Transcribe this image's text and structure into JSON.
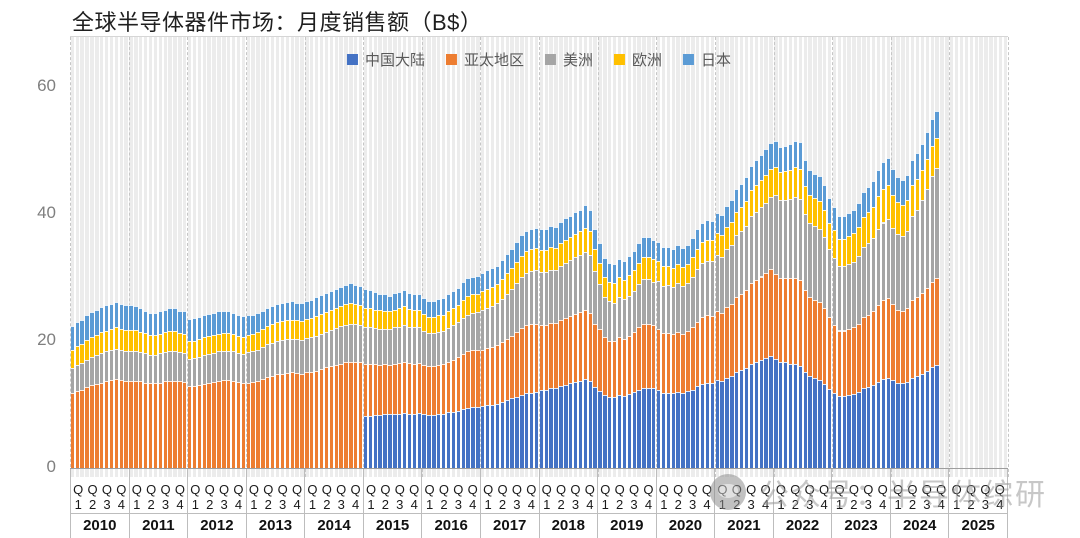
{
  "title": "全球半导体器件市场：月度销售额（B$）",
  "watermark": {
    "icon": "wechat-account-logo",
    "text": "公众号：半导体综研"
  },
  "chart_data": {
    "type": "bar",
    "stacked": true,
    "title": "全球半导体器件市场：月度销售额（B$）",
    "unit": "B$",
    "x_granularity": "monthly",
    "x_start": "2010-01",
    "x_end": "2024-10",
    "years": [
      2010,
      2011,
      2012,
      2013,
      2014,
      2015,
      2016,
      2017,
      2018,
      2019,
      2020,
      2021,
      2022,
      2023,
      2024,
      2025
    ],
    "quarter_labels": [
      "Q1",
      "Q2",
      "Q3",
      "Q4"
    ],
    "y_ticks": [
      0,
      20,
      40,
      60
    ],
    "ylim": [
      0,
      68
    ],
    "grid": "vertical-dashed-by-year",
    "legend_position": "top-center",
    "series": [
      {
        "name": "中国大陆",
        "color": "#4472C4",
        "values": [
          0,
          0,
          0,
          0,
          0,
          0,
          0,
          0,
          0,
          0,
          0,
          0,
          0,
          0,
          0,
          0,
          0,
          0,
          0,
          0,
          0,
          0,
          0,
          0,
          0,
          0,
          0,
          0,
          0,
          0,
          0,
          0,
          0,
          0,
          0,
          0,
          0,
          0,
          0,
          0,
          0,
          0,
          0,
          0,
          0,
          0,
          0,
          0,
          0,
          0,
          0,
          0,
          0,
          0,
          0,
          0,
          0,
          0,
          0,
          0,
          8.3,
          8.4,
          8.5,
          8.5,
          8.6,
          8.6,
          8.7,
          8.7,
          8.8,
          8.7,
          8.7,
          8.8,
          8.6,
          8.5,
          8.5,
          8.6,
          8.7,
          8.9,
          9.0,
          9.2,
          9.4,
          9.6,
          9.7,
          9.8,
          9.9,
          10.0,
          10.1,
          10.3,
          10.5,
          10.8,
          11.1,
          11.4,
          11.7,
          11.9,
          12.0,
          12.1,
          12.4,
          12.5,
          12.7,
          12.8,
          13.0,
          13.3,
          13.5,
          13.7,
          13.9,
          14.1,
          13.9,
          12.9,
          12.3,
          11.6,
          11.3,
          11.3,
          11.6,
          11.5,
          11.8,
          12.1,
          12.5,
          12.8,
          12.8,
          12.7,
          12.4,
          12.0,
          12.0,
          11.9,
          12.1,
          12.0,
          12.2,
          12.5,
          13.0,
          13.4,
          13.6,
          13.5,
          14.0,
          13.9,
          14.4,
          14.7,
          15.3,
          15.6,
          15.9,
          16.5,
          16.8,
          17.1,
          17.4,
          17.8,
          17.3,
          16.9,
          16.8,
          16.6,
          16.5,
          16.2,
          15.2,
          14.6,
          14.3,
          14.0,
          13.4,
          12.6,
          12.0,
          11.5,
          11.5,
          11.6,
          11.8,
          12.1,
          12.7,
          12.9,
          13.2,
          13.7,
          14.1,
          14.3,
          14.0,
          13.6,
          13.5,
          13.7,
          14.4,
          14.7,
          15.0,
          15.4,
          16.0,
          16.3
        ]
      },
      {
        "name": "亚太地区",
        "color": "#ED7D31",
        "values": [
          11.9,
          12.2,
          12.5,
          12.9,
          13.2,
          13.4,
          13.6,
          13.8,
          14.0,
          14.1,
          14.0,
          13.9,
          13.9,
          13.9,
          13.8,
          13.6,
          13.5,
          13.5,
          13.6,
          13.8,
          13.9,
          13.9,
          13.8,
          13.7,
          13.0,
          13.1,
          13.2,
          13.4,
          13.6,
          13.7,
          13.9,
          14.0,
          14.0,
          13.9,
          13.7,
          13.6,
          13.6,
          13.7,
          13.9,
          14.2,
          14.5,
          14.7,
          14.9,
          15.0,
          15.1,
          15.2,
          15.1,
          15.0,
          15.2,
          15.3,
          15.5,
          15.7,
          16.0,
          16.2,
          16.4,
          16.6,
          16.8,
          16.9,
          16.9,
          16.8,
          8.2,
          8.1,
          8.0,
          7.9,
          7.9,
          7.8,
          7.9,
          8.0,
          8.1,
          8.0,
          7.9,
          7.9,
          7.8,
          7.7,
          7.7,
          7.8,
          7.8,
          8.0,
          8.2,
          8.4,
          8.7,
          8.9,
          9.0,
          9.0,
          8.9,
          9.0,
          9.1,
          9.2,
          9.5,
          9.7,
          9.9,
          10.2,
          10.5,
          10.7,
          10.8,
          10.8,
          10.3,
          10.2,
          10.3,
          10.2,
          10.4,
          10.5,
          10.6,
          10.7,
          10.8,
          10.9,
          10.7,
          9.9,
          9.8,
          9.1,
          8.9,
          8.8,
          9.1,
          9.0,
          9.2,
          9.4,
          9.8,
          10.1,
          10.1,
          9.9,
          9.6,
          9.4,
          9.4,
          9.3,
          9.5,
          9.3,
          9.5,
          9.8,
          10.2,
          10.5,
          10.6,
          10.6,
          10.8,
          10.7,
          11.1,
          11.3,
          11.8,
          12.0,
          12.3,
          12.8,
          13.0,
          13.2,
          13.4,
          13.7,
          13.4,
          13.2,
          13.3,
          13.4,
          13.6,
          13.6,
          12.9,
          12.4,
          12.3,
          12.3,
          11.9,
          11.3,
          10.7,
          10.3,
          10.3,
          10.4,
          10.5,
          10.8,
          11.2,
          11.4,
          11.7,
          12.1,
          12.5,
          12.6,
          11.9,
          11.5,
          11.4,
          11.6,
          12.2,
          12.4,
          12.7,
          13.1,
          13.5,
          13.8
        ]
      },
      {
        "name": "美洲",
        "color": "#A5A5A5",
        "values": [
          4.0,
          4.1,
          4.2,
          4.3,
          4.4,
          4.5,
          4.6,
          4.7,
          4.7,
          4.8,
          4.7,
          4.7,
          4.7,
          4.7,
          4.6,
          4.6,
          4.5,
          4.5,
          4.6,
          4.6,
          4.7,
          4.7,
          4.6,
          4.6,
          4.3,
          4.3,
          4.4,
          4.5,
          4.5,
          4.6,
          4.6,
          4.6,
          4.6,
          4.6,
          4.5,
          4.5,
          4.8,
          4.8,
          4.9,
          5.0,
          5.1,
          5.2,
          5.2,
          5.3,
          5.3,
          5.3,
          5.3,
          5.3,
          5.4,
          5.4,
          5.5,
          5.6,
          5.6,
          5.7,
          5.8,
          5.9,
          5.9,
          6.0,
          6.0,
          5.9,
          5.9,
          5.8,
          5.7,
          5.7,
          5.6,
          5.6,
          5.7,
          5.7,
          5.8,
          5.7,
          5.7,
          5.6,
          5.3,
          5.2,
          5.2,
          5.2,
          5.2,
          5.3,
          5.4,
          5.5,
          5.7,
          5.8,
          5.9,
          5.9,
          6.3,
          6.4,
          6.5,
          6.6,
          6.8,
          7.1,
          7.4,
          7.7,
          8.0,
          8.2,
          8.3,
          8.4,
          8.3,
          8.3,
          8.4,
          8.3,
          8.6,
          8.7,
          8.8,
          8.9,
          9.0,
          9.2,
          9.1,
          8.4,
          7.0,
          6.4,
          6.2,
          6.1,
          6.3,
          6.2,
          6.3,
          6.5,
          6.8,
          7.0,
          7.0,
          6.9,
          7.6,
          7.4,
          7.5,
          7.4,
          7.6,
          7.5,
          7.6,
          7.9,
          8.3,
          8.5,
          8.6,
          8.6,
          8.9,
          8.8,
          9.1,
          9.3,
          9.7,
          9.9,
          10.1,
          10.5,
          10.7,
          10.9,
          11.1,
          11.3,
          12.4,
          12.2,
          12.3,
          12.5,
          12.7,
          12.7,
          12.0,
          11.7,
          11.6,
          11.5,
          11.2,
          10.7,
          10.5,
          10.1,
          10.1,
          10.2,
          10.3,
          10.6,
          11.0,
          11.2,
          11.4,
          11.9,
          12.2,
          12.4,
          12.1,
          11.9,
          11.8,
          12.2,
          13.2,
          13.7,
          14.6,
          15.6,
          16.6,
          17.3
        ]
      },
      {
        "name": "欧洲",
        "color": "#FFC000",
        "values": [
          2.9,
          3.0,
          3.0,
          3.1,
          3.2,
          3.2,
          3.3,
          3.3,
          3.3,
          3.4,
          3.3,
          3.3,
          3.3,
          3.3,
          3.2,
          3.2,
          3.1,
          3.1,
          3.1,
          3.1,
          3.1,
          3.1,
          3.0,
          3.0,
          2.8,
          2.8,
          2.8,
          2.8,
          2.8,
          2.8,
          2.8,
          2.8,
          2.8,
          2.7,
          2.7,
          2.7,
          2.7,
          2.7,
          2.8,
          2.8,
          2.9,
          2.9,
          3.0,
          3.0,
          3.0,
          3.0,
          3.0,
          3.0,
          3.0,
          3.0,
          3.1,
          3.1,
          3.1,
          3.1,
          3.1,
          3.2,
          3.2,
          3.2,
          3.1,
          3.1,
          3.0,
          3.0,
          2.9,
          2.9,
          2.8,
          2.8,
          2.8,
          2.9,
          2.9,
          2.8,
          2.8,
          2.8,
          2.7,
          2.6,
          2.6,
          2.6,
          2.6,
          2.7,
          2.7,
          2.7,
          2.8,
          2.9,
          2.9,
          2.9,
          2.9,
          3.0,
          3.0,
          3.0,
          3.1,
          3.2,
          3.2,
          3.3,
          3.4,
          3.5,
          3.5,
          3.5,
          3.5,
          3.5,
          3.5,
          3.5,
          3.6,
          3.6,
          3.6,
          3.7,
          3.7,
          3.8,
          3.7,
          3.4,
          3.4,
          3.2,
          3.1,
          3.1,
          3.2,
          3.1,
          3.2,
          3.3,
          3.4,
          3.5,
          3.5,
          3.5,
          3.2,
          3.1,
          3.1,
          3.0,
          3.1,
          3.0,
          3.0,
          3.1,
          3.2,
          3.3,
          3.3,
          3.3,
          3.4,
          3.4,
          3.5,
          3.6,
          3.7,
          3.8,
          3.9,
          4.1,
          4.2,
          4.3,
          4.4,
          4.5,
          4.5,
          4.4,
          4.5,
          4.6,
          4.7,
          4.7,
          4.5,
          4.4,
          4.4,
          4.4,
          4.3,
          4.2,
          4.4,
          4.3,
          4.3,
          4.4,
          4.5,
          4.6,
          4.8,
          4.9,
          5.0,
          5.2,
          5.3,
          5.4,
          5.2,
          5.0,
          4.9,
          4.8,
          4.9,
          4.9,
          4.8,
          4.7,
          4.7,
          4.7
        ]
      },
      {
        "name": "日本",
        "color": "#5B9BD5",
        "values": [
          3.7,
          3.8,
          3.8,
          3.9,
          3.9,
          3.9,
          4.0,
          4.0,
          4.0,
          4.0,
          3.9,
          3.9,
          3.9,
          3.8,
          3.7,
          3.5,
          3.4,
          3.4,
          3.5,
          3.5,
          3.6,
          3.6,
          3.5,
          3.5,
          3.5,
          3.5,
          3.5,
          3.5,
          3.5,
          3.5,
          3.5,
          3.4,
          3.4,
          3.4,
          3.3,
          3.3,
          3.1,
          3.0,
          2.9,
          2.9,
          2.9,
          2.9,
          2.9,
          2.9,
          2.9,
          2.9,
          2.8,
          2.8,
          2.8,
          2.9,
          2.9,
          3.0,
          3.0,
          3.0,
          3.0,
          3.0,
          3.1,
          3.1,
          3.0,
          3.0,
          2.9,
          2.8,
          2.7,
          2.6,
          2.6,
          2.5,
          2.6,
          2.6,
          2.6,
          2.5,
          2.5,
          2.5,
          2.5,
          2.5,
          2.5,
          2.5,
          2.6,
          2.6,
          2.7,
          2.7,
          2.8,
          2.8,
          2.8,
          2.8,
          2.8,
          2.9,
          2.9,
          2.9,
          3.0,
          3.0,
          3.1,
          3.1,
          3.2,
          3.2,
          3.2,
          3.2,
          3.2,
          3.2,
          3.3,
          3.3,
          3.3,
          3.4,
          3.4,
          3.4,
          3.4,
          3.5,
          3.4,
          3.2,
          3.1,
          2.9,
          2.9,
          2.9,
          2.9,
          2.9,
          3.0,
          3.0,
          3.1,
          3.1,
          3.1,
          3.1,
          3.0,
          3.0,
          3.0,
          3.0,
          3.0,
          3.0,
          3.0,
          3.0,
          3.1,
          3.1,
          3.1,
          3.1,
          3.2,
          3.2,
          3.3,
          3.4,
          3.5,
          3.6,
          3.7,
          3.8,
          3.9,
          3.9,
          4.0,
          4.0,
          4.0,
          4.0,
          4.0,
          4.1,
          4.1,
          4.2,
          4.0,
          3.9,
          3.9,
          3.9,
          3.9,
          3.8,
          3.7,
          3.6,
          3.6,
          3.7,
          3.7,
          3.8,
          3.9,
          4.0,
          4.0,
          4.1,
          4.2,
          4.2,
          4.0,
          3.9,
          3.9,
          3.9,
          4.0,
          4.0,
          4.1,
          4.2,
          4.3,
          4.3
        ]
      }
    ]
  }
}
